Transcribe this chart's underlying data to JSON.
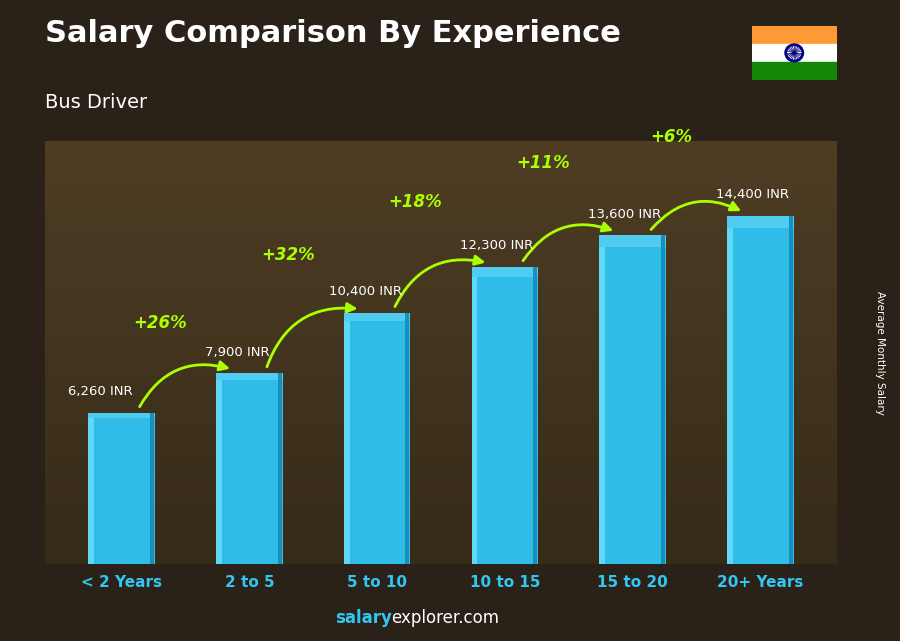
{
  "title": "Salary Comparison By Experience",
  "subtitle": "Bus Driver",
  "categories": [
    "< 2 Years",
    "2 to 5",
    "5 to 10",
    "10 to 15",
    "15 to 20",
    "20+ Years"
  ],
  "values": [
    6260,
    7900,
    10400,
    12300,
    13600,
    14400
  ],
  "value_labels": [
    "6,260 INR",
    "7,900 INR",
    "10,400 INR",
    "12,300 INR",
    "13,600 INR",
    "14,400 INR"
  ],
  "pct_labels": [
    "+26%",
    "+32%",
    "+18%",
    "+11%",
    "+6%"
  ],
  "bar_color_main": "#30bce8",
  "bar_color_light": "#60d8f8",
  "bar_color_top": "#50ccf0",
  "bar_color_dark": "#1890bb",
  "pct_color": "#aaff00",
  "value_label_color": "#ffffff",
  "title_color": "#ffffff",
  "subtitle_color": "#ffffff",
  "xlabel_color": "#30c8f0",
  "footer_salary_color": "#30c8f0",
  "footer_rest_color": "#ffffff",
  "ylabel_text": "Average Monthly Salary",
  "bg_color": "#2a2218",
  "ylim": [
    0,
    17500
  ],
  "bar_width": 0.52,
  "arrow_color": "#aaff00"
}
